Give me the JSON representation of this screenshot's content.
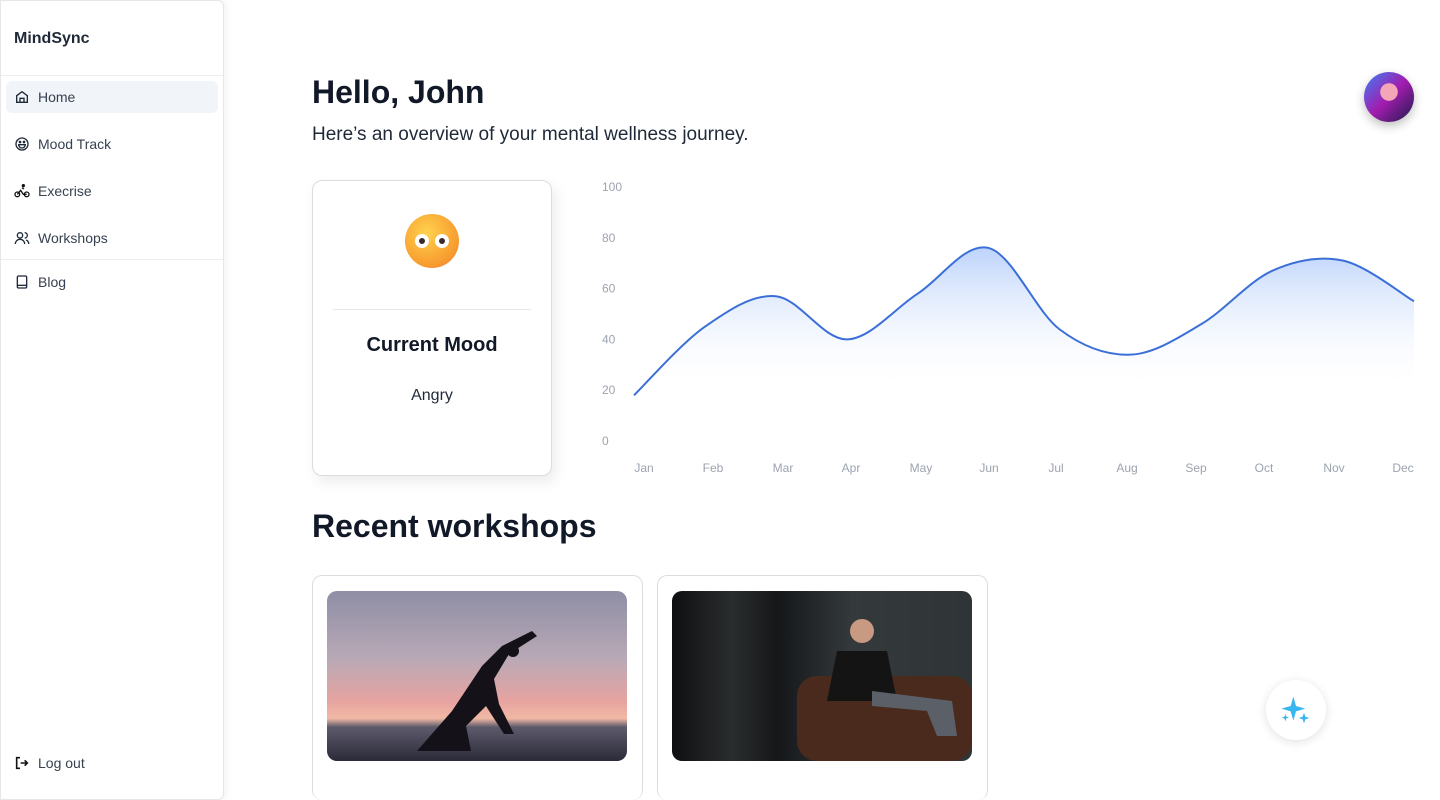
{
  "app": {
    "name": "MindSync"
  },
  "sidebar": {
    "items": [
      {
        "label": "Home",
        "icon": "home-icon",
        "active": true
      },
      {
        "label": "Mood Track",
        "icon": "smile-icon"
      },
      {
        "label": "Execrise",
        "icon": "bike-icon"
      },
      {
        "label": "Workshops",
        "icon": "users-icon"
      },
      {
        "label": "Blog",
        "icon": "book-icon"
      }
    ],
    "logout": "Log out"
  },
  "header": {
    "greeting": "Hello, John",
    "subtitle": "Here’s an overview of your mental wellness journey."
  },
  "mood": {
    "title": "Current Mood",
    "value": "Angry",
    "emoji": "angry-face"
  },
  "workshops": {
    "title": "Recent workshops",
    "items": [
      {
        "image": "yoga-silhouette-sunset"
      },
      {
        "image": "man-on-leather-sofa"
      }
    ]
  },
  "colors": {
    "accent": "#3b6fd8",
    "fill": "#bcd3fb",
    "fab": "#38b6f0"
  },
  "chart_data": {
    "type": "area",
    "categories": [
      "Jan",
      "Feb",
      "Mar",
      "Apr",
      "May",
      "Jun",
      "Jul",
      "Aug",
      "Sep",
      "Oct",
      "Nov",
      "Dec"
    ],
    "values": [
      18,
      45,
      57,
      40,
      58,
      76,
      44,
      34,
      46,
      67,
      71,
      55
    ],
    "yticks": [
      0,
      20,
      40,
      60,
      80,
      100
    ],
    "ylim": [
      0,
      100
    ],
    "grid": false,
    "smooth": true
  }
}
